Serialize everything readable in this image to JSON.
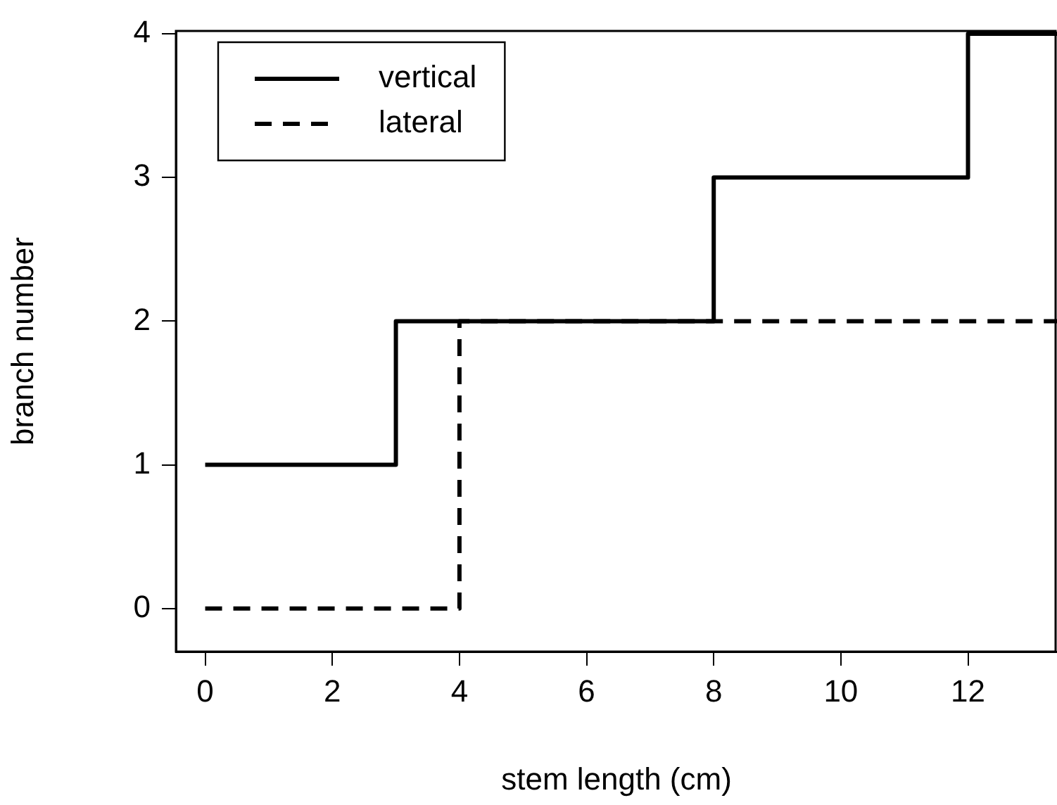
{
  "chart_data": {
    "type": "step",
    "xlabel": "stem length (cm)",
    "ylabel": "branch number",
    "xlim": [
      -0.46,
      13.4
    ],
    "xticks": [
      0,
      2,
      4,
      6,
      8,
      10,
      12
    ],
    "ylim": [
      -0.3,
      4.02
    ],
    "yticks": [
      0,
      1,
      2,
      3,
      4
    ],
    "grid": false,
    "legend": "top left",
    "marker": "none",
    "series": [
      {
        "name": "vertical",
        "color": "#000000",
        "line_style": "solid",
        "x": [
          0,
          3,
          8,
          12,
          13.4
        ],
        "values": [
          1,
          2,
          3,
          4,
          4
        ]
      },
      {
        "name": "lateral",
        "color": "#000000",
        "line_style": "dashed",
        "x": [
          0,
          4,
          13.4
        ],
        "values": [
          0,
          2,
          2
        ]
      }
    ]
  }
}
